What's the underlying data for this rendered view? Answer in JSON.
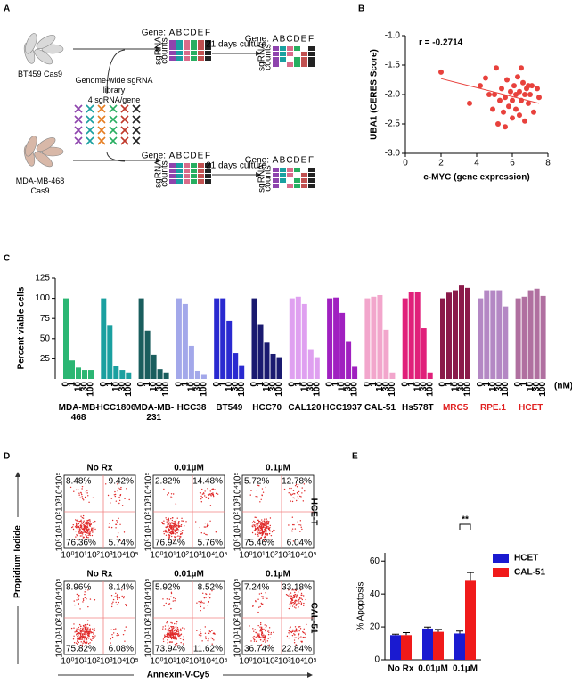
{
  "panel_a": {
    "label": "A",
    "cell_lines": [
      "BT459 Cas9",
      "MDA-MB-468\nCas9"
    ],
    "library": "Genome-wide sgRNA\nlibrary\n4 sgRNA/gene",
    "gene_header": "Gene:",
    "genes": [
      "A",
      "B",
      "C",
      "D",
      "E",
      "F"
    ],
    "counts_label": [
      "sgRNA",
      "counts"
    ],
    "culture": "21 days culture"
  },
  "chart_data": [
    {
      "type": "scatter",
      "label": "B",
      "annotation": "r = -0.2714",
      "x_label": "c-MYC (gene expression)",
      "y_label": "UBA1 (CERES Score)",
      "color": "#e8413c",
      "xlim": [
        0,
        8
      ],
      "xticks": [
        0,
        2,
        4,
        6,
        8
      ],
      "ylim": [
        -3.0,
        -1.0
      ],
      "yticks": [
        {
          "value": -1.0,
          "label": "-1.0"
        },
        -1.5,
        {
          "value": -2.0,
          "label": "-2.0"
        },
        -2.5,
        {
          "value": -3.0,
          "label": "-3.0"
        }
      ],
      "x": [
        2.0,
        3.6,
        4.2,
        4.5,
        4.7,
        4.9,
        5.0,
        5.1,
        5.3,
        5.4,
        5.5,
        5.6,
        5.7,
        5.8,
        5.9,
        6.0,
        6.0,
        6.1,
        6.2,
        6.2,
        6.3,
        6.4,
        6.4,
        6.5,
        6.5,
        6.6,
        6.7,
        6.7,
        6.8,
        6.9,
        7.0,
        7.1,
        7.2,
        7.4,
        7.5,
        5.2,
        5.6,
        6.9
      ],
      "y": [
        -1.62,
        -2.15,
        -1.85,
        -1.72,
        -2.0,
        -2.25,
        -2.0,
        -1.55,
        -2.1,
        -1.9,
        -2.3,
        -2.05,
        -1.75,
        -2.2,
        -1.95,
        -2.4,
        -2.1,
        -1.85,
        -2.0,
        -2.25,
        -1.7,
        -1.95,
        -2.35,
        -2.1,
        -1.55,
        -1.8,
        -2.0,
        -2.45,
        -1.9,
        -2.15,
        -2.0,
        -1.85,
        -2.3,
        -1.9,
        -2.05,
        -2.5,
        -2.55,
        -1.85
      ],
      "trend": {
        "x": [
          2.0,
          7.5
        ],
        "y": [
          -1.73,
          -2.15
        ]
      }
    },
    {
      "type": "grouped-bar",
      "label": "C",
      "y_label": "Percent viable cells",
      "ylim": [
        0,
        125
      ],
      "yticks": [
        25,
        50,
        75,
        100,
        125
      ],
      "concentrations": [
        "0",
        "1",
        "10",
        "30",
        "100"
      ],
      "unit": "(nM)",
      "groups": [
        {
          "name": "MDA-MB-468",
          "color": "#2bb673",
          "values": [
            100,
            23,
            14,
            11,
            11
          ]
        },
        {
          "name": "HCC1806",
          "color": "#1aa0a0",
          "values": [
            100,
            66,
            16,
            11,
            8
          ]
        },
        {
          "name": "MDA-MB-231",
          "color": "#1a5e5e",
          "values": [
            100,
            60,
            30,
            12,
            8
          ]
        },
        {
          "name": "HCC38",
          "color": "#a3a8ea",
          "values": [
            100,
            93,
            41,
            10,
            5
          ]
        },
        {
          "name": "BT549",
          "color": "#2a2ad0",
          "values": [
            100,
            100,
            72,
            32,
            17
          ]
        },
        {
          "name": "HCC70",
          "color": "#1a1a70",
          "values": [
            100,
            68,
            45,
            31,
            27
          ]
        },
        {
          "name": "CAL120",
          "color": "#dfa0f0",
          "values": [
            100,
            102,
            93,
            37,
            27
          ]
        },
        {
          "name": "HCC1937",
          "color": "#a020c0",
          "values": [
            100,
            101,
            82,
            47,
            15
          ]
        },
        {
          "name": "CAL-51",
          "color": "#f2a6cc",
          "values": [
            100,
            102,
            104,
            61,
            8
          ]
        },
        {
          "name": "Hs578T",
          "color": "#e0207a",
          "values": [
            100,
            108,
            108,
            63,
            8
          ]
        },
        {
          "name": "MRC5",
          "color": "#8b1a4a",
          "label_color": "#e02020",
          "values": [
            100,
            107,
            110,
            116,
            113
          ]
        },
        {
          "name": "RPE.1",
          "color": "#b488c4",
          "label_color": "#e02020",
          "values": [
            100,
            110,
            110,
            110,
            90
          ]
        },
        {
          "name": "HCET",
          "color": "#b070a0",
          "label_color": "#e02020",
          "values": [
            100,
            102,
            110,
            112,
            103
          ]
        }
      ]
    },
    {
      "type": "bar",
      "label": "E",
      "y_label": "% Apoptosis",
      "annotation": "**",
      "legend": "upper right",
      "categories": [
        "No Rx",
        "0.01µM",
        "0.1µM"
      ],
      "ylim": [
        0,
        65
      ],
      "yticks": [
        0,
        20,
        40,
        60
      ],
      "series": [
        {
          "name": "HCET",
          "color": "#1a1ad0",
          "values": [
            15,
            19,
            16
          ],
          "errors": [
            0.6,
            0.9,
            1.5
          ]
        },
        {
          "name": "CAL-51",
          "color": "#f01a1a",
          "values": [
            15,
            17,
            48
          ],
          "errors": [
            1.5,
            1.5,
            5
          ]
        }
      ]
    }
  ],
  "panel_d": {
    "label": "D",
    "y_label": "Propidium Iodide",
    "x_label": "Annexin-V-Cy5",
    "conditions": [
      "No Rx",
      "0.01µM",
      "0.1µM"
    ],
    "rows": [
      "HCE-T",
      "CAL-51"
    ],
    "axis_ticks": [
      "10⁰",
      "10¹",
      "10²",
      "10³",
      "10⁴",
      "10⁵"
    ],
    "quadrants": [
      [
        [
          "8.48%",
          "9.42%",
          "76.36%",
          "5.74%"
        ],
        [
          "2.82%",
          "14.48%",
          "76.94%",
          "5.76%"
        ],
        [
          "5.72%",
          "12.78%",
          "75.46%",
          "6.04%"
        ]
      ],
      [
        [
          "8.96%",
          "8.14%",
          "75.82%",
          "6.08%"
        ],
        [
          "5.92%",
          "8.52%",
          "73.94%",
          "11.62%"
        ],
        [
          "7.24%",
          "33.18%",
          "36.74%",
          "22.84%"
        ]
      ]
    ]
  }
}
